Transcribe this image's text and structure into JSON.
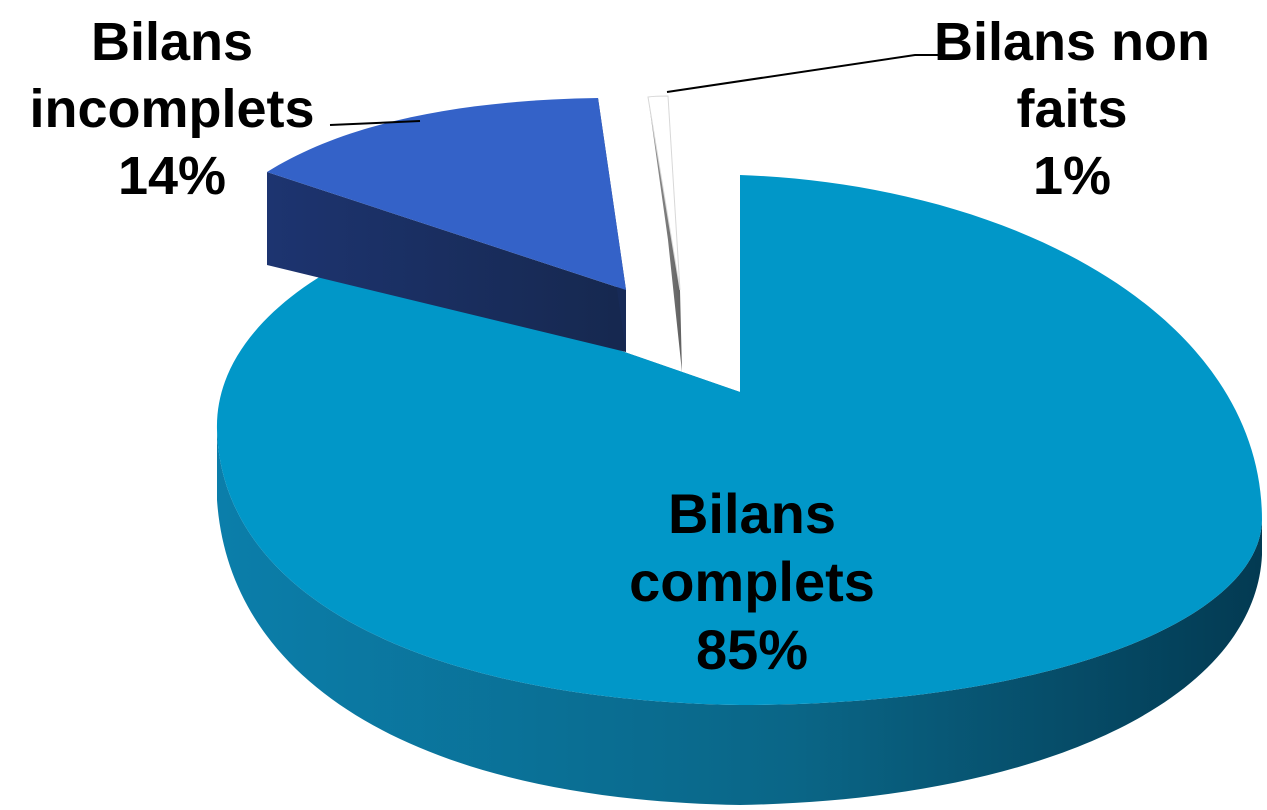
{
  "chart_data": {
    "type": "pie",
    "slices": [
      {
        "label_lines": [
          "Bilans",
          "complets"
        ],
        "value": 85,
        "pct_text": "85%",
        "color": "#0197c8",
        "side_light": "#0b7eaa",
        "side_dark": "#033a52"
      },
      {
        "label_lines": [
          "Bilans",
          "incomplets"
        ],
        "value": 14,
        "pct_text": "14%",
        "color": "#3462c8",
        "side_light": "#1d3470",
        "side_dark": "#16284f"
      },
      {
        "label_lines": [
          "Bilans non",
          "faits"
        ],
        "value": 1,
        "pct_text": "1%",
        "color": "#ffffff",
        "side_light": "#9a9a9a",
        "side_dark": "#5f5f5f"
      }
    ],
    "three_d": true,
    "exploded": true,
    "legend": "none",
    "data_labels": "outside-with-leaders"
  }
}
